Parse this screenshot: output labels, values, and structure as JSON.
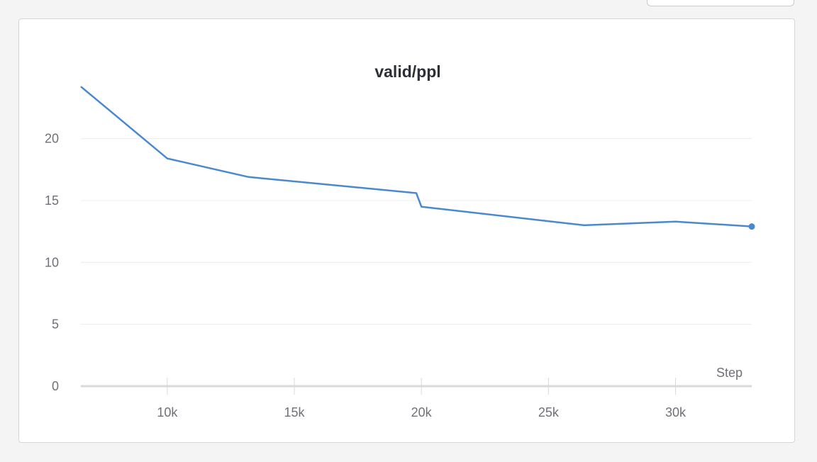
{
  "colors": {
    "series": "#4a89d0",
    "grid": "#ececee",
    "axis": "#d9d9dc"
  },
  "chart_data": {
    "type": "line",
    "title": "valid/ppl",
    "xlabel": "Step",
    "ylabel": "",
    "xlim": [
      6600,
      33000
    ],
    "ylim": [
      0,
      24.5
    ],
    "x_ticks": [
      10000,
      15000,
      20000,
      25000,
      30000
    ],
    "x_tick_labels": [
      "10k",
      "15k",
      "20k",
      "25k",
      "30k"
    ],
    "y_ticks": [
      0,
      5,
      10,
      15,
      20
    ],
    "y_tick_labels": [
      "0",
      "5",
      "10",
      "15",
      "20"
    ],
    "grid": true,
    "legend": "none",
    "series": [
      {
        "x": [
          6600,
          10000,
          13200,
          19800,
          20000,
          26400,
          30000,
          33000
        ],
        "y": [
          24.2,
          18.4,
          16.9,
          15.6,
          14.5,
          13.0,
          13.3,
          12.9
        ]
      }
    ]
  }
}
